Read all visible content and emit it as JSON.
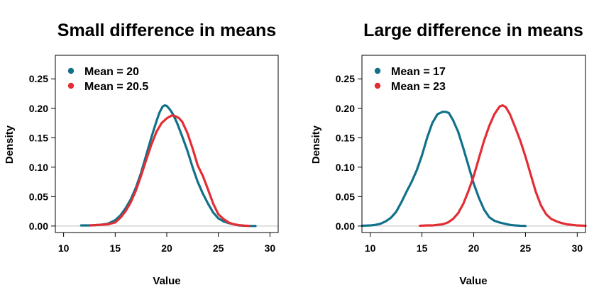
{
  "chart_data": [
    {
      "type": "line",
      "title": "Small difference in means",
      "xlabel": "Value",
      "ylabel": "Density",
      "xlim": [
        9.2,
        30.8
      ],
      "ylim": [
        -0.011,
        0.29
      ],
      "xticks": [
        10,
        15,
        20,
        25,
        30
      ],
      "yticks": [
        0.0,
        0.05,
        0.1,
        0.15,
        0.2,
        0.25
      ],
      "ytick_labels": [
        "0.00",
        "0.05",
        "0.10",
        "0.15",
        "0.20",
        "0.25"
      ],
      "baseline": 0,
      "grid": false,
      "legend_position": "top-left",
      "series": [
        {
          "name": "Mean = 20",
          "color": "#11718A",
          "x": [
            11.7,
            12.5,
            13.5,
            14.3,
            15.0,
            15.5,
            16.0,
            16.5,
            17.0,
            17.5,
            18.0,
            18.5,
            19.0,
            19.3,
            19.6,
            19.8,
            20.0,
            20.3,
            20.6,
            21.0,
            21.5,
            22.0,
            22.5,
            23.0,
            23.5,
            24.0,
            24.5,
            25.0,
            25.5,
            26.0,
            26.5,
            27.0,
            27.5,
            28.0,
            28.6
          ],
          "y": [
            0.001,
            0.001,
            0.002,
            0.004,
            0.01,
            0.018,
            0.03,
            0.045,
            0.065,
            0.09,
            0.12,
            0.15,
            0.178,
            0.193,
            0.203,
            0.205,
            0.204,
            0.198,
            0.19,
            0.175,
            0.152,
            0.128,
            0.1,
            0.075,
            0.055,
            0.038,
            0.023,
            0.013,
            0.008,
            0.005,
            0.003,
            0.001,
            0.0005,
            0.0002,
            0.0001
          ]
        },
        {
          "name": "Mean = 20.5",
          "color": "#E32D34",
          "x": [
            12.6,
            13.5,
            14.3,
            15.0,
            15.5,
            16.0,
            16.5,
            17.0,
            17.5,
            18.0,
            18.5,
            19.0,
            19.5,
            20.0,
            20.5,
            20.8,
            21.2,
            21.5,
            22.0,
            22.5,
            23.0,
            23.5,
            24.0,
            24.5,
            25.0,
            25.5,
            26.0,
            26.5,
            27.0,
            27.5,
            28.0
          ],
          "y": [
            0.001,
            0.002,
            0.003,
            0.006,
            0.014,
            0.025,
            0.04,
            0.06,
            0.085,
            0.112,
            0.138,
            0.16,
            0.175,
            0.183,
            0.188,
            0.187,
            0.183,
            0.177,
            0.158,
            0.132,
            0.103,
            0.085,
            0.062,
            0.038,
            0.02,
            0.012,
            0.006,
            0.003,
            0.0015,
            0.0007,
            0.0003
          ]
        }
      ]
    },
    {
      "type": "line",
      "title": "Large difference in means",
      "xlabel": "Value",
      "ylabel": "Density",
      "xlim": [
        9.2,
        30.8
      ],
      "ylim": [
        -0.011,
        0.29
      ],
      "xticks": [
        10,
        15,
        20,
        25,
        30
      ],
      "yticks": [
        0.0,
        0.05,
        0.1,
        0.15,
        0.2,
        0.25
      ],
      "ytick_labels": [
        "0.00",
        "0.05",
        "0.10",
        "0.15",
        "0.20",
        "0.25"
      ],
      "baseline": 0,
      "grid": false,
      "legend_position": "top-left",
      "series": [
        {
          "name": "Mean = 17",
          "color": "#11718A",
          "x": [
            9.2,
            10.0,
            10.5,
            11.0,
            11.5,
            12.0,
            12.5,
            13.0,
            13.5,
            14.0,
            14.5,
            15.0,
            15.5,
            16.0,
            16.5,
            17.0,
            17.3,
            17.6,
            18.0,
            18.5,
            19.0,
            19.5,
            20.0,
            20.5,
            21.0,
            21.5,
            22.0,
            22.5,
            23.0,
            23.5,
            24.0,
            24.5,
            25.0
          ],
          "y": [
            0.0005,
            0.001,
            0.002,
            0.004,
            0.008,
            0.014,
            0.024,
            0.04,
            0.058,
            0.075,
            0.095,
            0.12,
            0.15,
            0.175,
            0.19,
            0.194,
            0.194,
            0.192,
            0.18,
            0.16,
            0.132,
            0.102,
            0.072,
            0.048,
            0.028,
            0.015,
            0.009,
            0.006,
            0.004,
            0.002,
            0.001,
            0.0005,
            0.0002
          ]
        },
        {
          "name": "Mean = 23",
          "color": "#E32D34",
          "x": [
            14.8,
            15.5,
            16.0,
            16.5,
            17.0,
            17.5,
            18.0,
            18.5,
            19.0,
            19.5,
            20.0,
            20.5,
            21.0,
            21.5,
            22.0,
            22.5,
            22.8,
            23.1,
            23.5,
            24.0,
            24.5,
            25.0,
            25.5,
            26.0,
            26.5,
            27.0,
            27.5,
            28.0,
            28.5,
            29.0,
            29.5,
            30.0,
            30.8
          ],
          "y": [
            0.0005,
            0.001,
            0.001,
            0.002,
            0.003,
            0.006,
            0.012,
            0.022,
            0.038,
            0.06,
            0.085,
            0.115,
            0.145,
            0.17,
            0.19,
            0.203,
            0.205,
            0.202,
            0.19,
            0.168,
            0.145,
            0.118,
            0.088,
            0.058,
            0.035,
            0.02,
            0.012,
            0.008,
            0.005,
            0.003,
            0.002,
            0.001,
            0.0005
          ]
        }
      ]
    }
  ]
}
